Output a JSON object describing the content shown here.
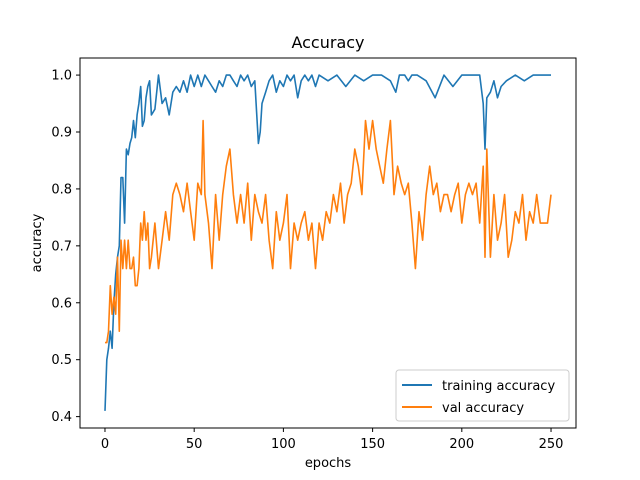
{
  "chart_data": {
    "type": "line",
    "title": "Accuracy",
    "xlabel": "epochs",
    "ylabel": "accuracy",
    "xlim": [
      -14,
      264
    ],
    "ylim": [
      0.38,
      1.03
    ],
    "xticks": [
      0,
      50,
      100,
      150,
      200,
      250
    ],
    "yticks": [
      0.4,
      0.5,
      0.6,
      0.7,
      0.8,
      0.9,
      1.0
    ],
    "ytick_labels": [
      "0.4",
      "0.5",
      "0.6",
      "0.7",
      "0.8",
      "0.9",
      "1.0"
    ],
    "grid": false,
    "legend_position": "lower-right",
    "series": [
      {
        "name": "training accuracy",
        "color": "#1f77b4",
        "x": [
          0,
          1,
          2,
          3,
          4,
          5,
          6,
          7,
          8,
          9,
          10,
          11,
          12,
          13,
          14,
          15,
          16,
          17,
          18,
          19,
          20,
          21,
          22,
          23,
          24,
          25,
          26,
          28,
          30,
          32,
          34,
          36,
          38,
          40,
          42,
          44,
          46,
          48,
          50,
          52,
          54,
          56,
          58,
          60,
          62,
          64,
          66,
          68,
          70,
          72,
          74,
          76,
          78,
          80,
          82,
          84,
          86,
          87,
          88,
          90,
          92,
          94,
          96,
          98,
          100,
          102,
          104,
          106,
          108,
          110,
          112,
          114,
          116,
          118,
          120,
          125,
          130,
          135,
          140,
          145,
          150,
          155,
          160,
          163,
          165,
          168,
          170,
          172,
          175,
          180,
          185,
          190,
          195,
          200,
          205,
          210,
          212,
          213,
          214,
          216,
          218,
          220,
          222,
          225,
          230,
          235,
          240,
          245,
          250
        ],
        "y": [
          0.41,
          0.5,
          0.52,
          0.55,
          0.52,
          0.6,
          0.65,
          0.68,
          0.7,
          0.82,
          0.82,
          0.74,
          0.87,
          0.86,
          0.88,
          0.89,
          0.92,
          0.89,
          0.93,
          0.95,
          0.98,
          0.91,
          0.92,
          0.96,
          0.98,
          0.99,
          0.93,
          0.94,
          1.0,
          0.95,
          0.96,
          0.93,
          0.97,
          0.98,
          0.97,
          0.99,
          0.97,
          1.0,
          0.98,
          1.0,
          0.98,
          1.0,
          0.99,
          0.98,
          0.97,
          0.99,
          0.98,
          1.0,
          1.0,
          0.99,
          0.98,
          1.0,
          0.99,
          1.0,
          0.98,
          0.99,
          0.88,
          0.9,
          0.95,
          0.97,
          0.99,
          1.0,
          0.97,
          0.99,
          0.98,
          1.0,
          0.99,
          1.0,
          0.96,
          0.99,
          1.0,
          0.99,
          1.0,
          0.98,
          1.0,
          0.99,
          1.0,
          0.98,
          1.0,
          0.99,
          1.0,
          1.0,
          0.99,
          0.97,
          1.0,
          1.0,
          0.99,
          1.0,
          1.0,
          0.99,
          0.96,
          1.0,
          0.98,
          1.0,
          1.0,
          1.0,
          0.95,
          0.87,
          0.96,
          0.97,
          0.99,
          0.96,
          0.98,
          0.99,
          1.0,
          0.99,
          1.0,
          1.0,
          1.0
        ]
      },
      {
        "name": "val accuracy",
        "color": "#ff7f0e",
        "x": [
          0,
          1,
          2,
          3,
          4,
          5,
          6,
          7,
          8,
          9,
          10,
          11,
          12,
          13,
          14,
          15,
          16,
          17,
          18,
          19,
          20,
          21,
          22,
          23,
          24,
          25,
          26,
          28,
          30,
          32,
          34,
          36,
          38,
          40,
          42,
          44,
          46,
          48,
          50,
          52,
          54,
          55,
          56,
          58,
          60,
          62,
          64,
          66,
          68,
          70,
          72,
          74,
          76,
          78,
          80,
          82,
          84,
          86,
          88,
          90,
          92,
          94,
          96,
          98,
          100,
          102,
          104,
          106,
          108,
          110,
          112,
          114,
          116,
          118,
          120,
          122,
          124,
          126,
          128,
          130,
          132,
          134,
          136,
          138,
          140,
          142,
          144,
          146,
          148,
          150,
          152,
          154,
          156,
          158,
          160,
          162,
          164,
          166,
          168,
          170,
          172,
          174,
          176,
          178,
          180,
          182,
          184,
          186,
          188,
          190,
          192,
          194,
          196,
          198,
          200,
          202,
          204,
          206,
          208,
          210,
          212,
          213,
          214,
          216,
          218,
          220,
          222,
          224,
          226,
          228,
          230,
          232,
          234,
          236,
          238,
          240,
          242,
          244,
          246,
          248,
          250
        ],
        "y": [
          0.53,
          0.53,
          0.55,
          0.63,
          0.58,
          0.61,
          0.58,
          0.68,
          0.55,
          0.71,
          0.66,
          0.71,
          0.66,
          0.71,
          0.66,
          0.66,
          0.68,
          0.63,
          0.63,
          0.66,
          0.74,
          0.71,
          0.76,
          0.71,
          0.74,
          0.66,
          0.68,
          0.74,
          0.66,
          0.71,
          0.76,
          0.71,
          0.79,
          0.81,
          0.79,
          0.76,
          0.81,
          0.76,
          0.71,
          0.81,
          0.79,
          0.92,
          0.79,
          0.74,
          0.66,
          0.79,
          0.71,
          0.79,
          0.84,
          0.87,
          0.79,
          0.74,
          0.79,
          0.74,
          0.81,
          0.71,
          0.79,
          0.76,
          0.74,
          0.79,
          0.71,
          0.66,
          0.76,
          0.71,
          0.74,
          0.79,
          0.66,
          0.74,
          0.71,
          0.74,
          0.76,
          0.71,
          0.74,
          0.66,
          0.74,
          0.71,
          0.76,
          0.74,
          0.79,
          0.76,
          0.81,
          0.74,
          0.79,
          0.81,
          0.87,
          0.84,
          0.79,
          0.92,
          0.87,
          0.92,
          0.87,
          0.84,
          0.81,
          0.87,
          0.92,
          0.79,
          0.84,
          0.81,
          0.79,
          0.81,
          0.74,
          0.66,
          0.76,
          0.71,
          0.79,
          0.84,
          0.79,
          0.81,
          0.76,
          0.79,
          0.79,
          0.76,
          0.79,
          0.81,
          0.74,
          0.79,
          0.81,
          0.79,
          0.81,
          0.74,
          0.84,
          0.68,
          0.87,
          0.68,
          0.79,
          0.71,
          0.74,
          0.79,
          0.68,
          0.71,
          0.76,
          0.74,
          0.79,
          0.71,
          0.76,
          0.74,
          0.79,
          0.74,
          0.74,
          0.74,
          0.79
        ]
      }
    ]
  }
}
